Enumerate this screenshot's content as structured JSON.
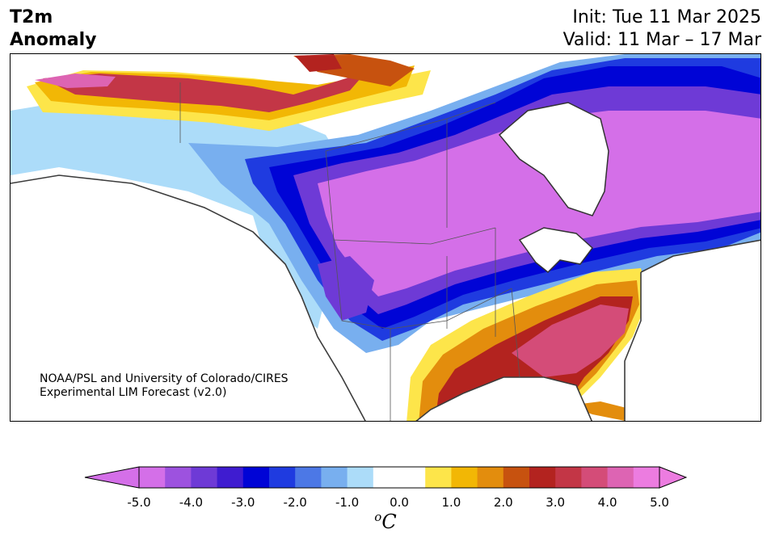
{
  "title": {
    "variable_line1": "T2m",
    "variable_line2": "Anomaly",
    "init": "Init: Tue 11 Mar 2025",
    "valid": "Valid: 11 Mar – 17 Mar"
  },
  "credit": {
    "line1": "NOAA/PSL and University of Colorado/CIRES",
    "line2": "Experimental LIM Forecast (v2.0)"
  },
  "colorbar": {
    "ticks": [
      "-5.0",
      "-4.0",
      "-3.0",
      "-2.0",
      "-1.0",
      "0.0",
      "1.0",
      "2.0",
      "3.0",
      "4.0",
      "5.0"
    ],
    "units_sup": "o",
    "units": "C",
    "colors": [
      "#d46fe8",
      "#9d52df",
      "#6e3ad6",
      "#3f1cd0",
      "#0004d6",
      "#1f3be0",
      "#4c78e6",
      "#78afef",
      "#acdcf9",
      "#ffffff",
      "#ffffff",
      "#fde54a",
      "#f2b705",
      "#e38d0d",
      "#c7520f",
      "#b3231f",
      "#c33646",
      "#d44c78",
      "#dd64b3",
      "#ec7ce0"
    ]
  },
  "map_regions": {
    "cold_core": "northern-central US and central Canada",
    "warm_core": "southeastern US and south Texas"
  }
}
